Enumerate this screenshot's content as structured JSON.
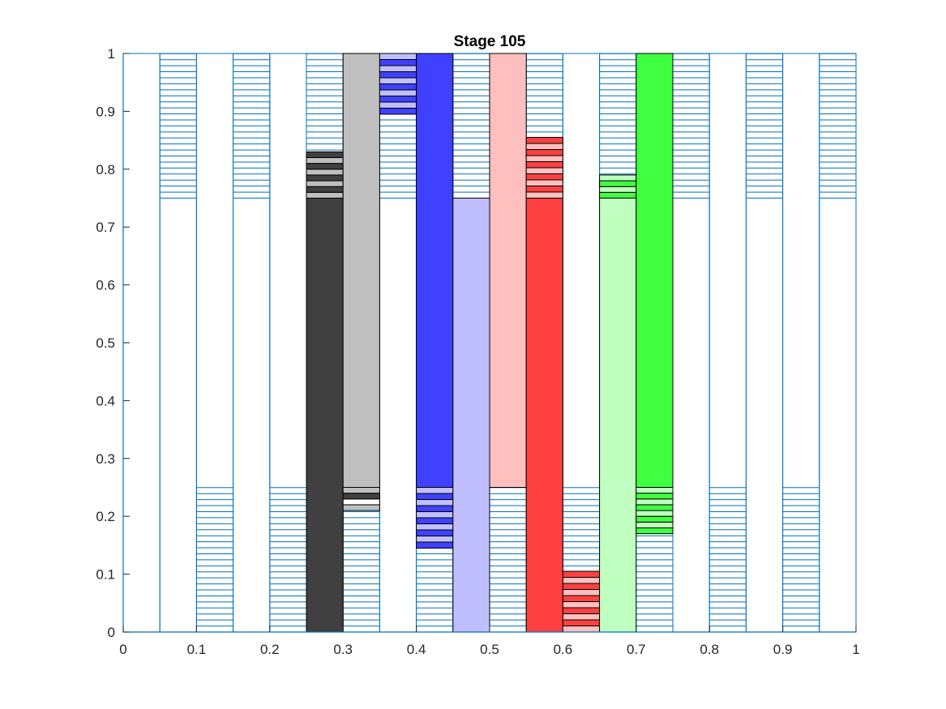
{
  "chart_data": {
    "type": "bar",
    "title": "Stage 105",
    "xlabel": "",
    "ylabel": "",
    "xlim": [
      0,
      1
    ],
    "ylim": [
      0,
      1
    ],
    "xticks": [
      "0",
      "0.1",
      "0.2",
      "0.3",
      "0.4",
      "0.5",
      "0.6",
      "0.7",
      "0.8",
      "0.9",
      "1"
    ],
    "yticks": [
      "0",
      "0.1",
      "0.2",
      "0.3",
      "0.4",
      "0.5",
      "0.6",
      "0.7",
      "0.8",
      "0.9",
      "1"
    ],
    "grid": false,
    "colors": {
      "outline": "#0072BD",
      "dark_gray": "#404040",
      "light_gray": "#bfbfbf",
      "blue": "#4040ff",
      "light_blue": "#bfbfff",
      "red": "#ff4040",
      "pink": "#ffbfbf",
      "green": "#40ff40",
      "light_green": "#bfffbf"
    },
    "columns": [
      {
        "x": [
          0.0,
          0.05
        ],
        "segments": [],
        "outline": {
          "hatch_bottom": 0,
          "hatch_top": 0
        }
      },
      {
        "x": [
          0.05,
          0.1
        ],
        "segments": [],
        "outline": {
          "hatch_bottom": 0,
          "hatch_top": 1
        }
      },
      {
        "x": [
          0.1,
          0.15
        ],
        "segments": [],
        "outline": {
          "hatch_bottom": 1,
          "hatch_top": 0
        }
      },
      {
        "x": [
          0.15,
          0.2
        ],
        "segments": [],
        "outline": {
          "hatch_bottom": 0,
          "hatch_top": 1
        }
      },
      {
        "x": [
          0.2,
          0.25
        ],
        "segments": [],
        "outline": {
          "hatch_bottom": 1,
          "hatch_top": 0
        }
      },
      {
        "x": [
          0.25,
          0.3
        ],
        "segments": [
          {
            "y0": 0.0,
            "y1": 0.75,
            "color": "dark_gray"
          },
          {
            "y0": 0.75,
            "y1": 0.83,
            "stripes": [
              "light_gray",
              "dark_gray"
            ]
          }
        ],
        "outline": {
          "hatch_bottom": 0,
          "hatch_top": 1
        }
      },
      {
        "x": [
          0.3,
          0.35
        ],
        "segments": [
          {
            "y0": 0.25,
            "y1": 1.0,
            "color": "light_gray"
          },
          {
            "y0": 0.21,
            "y1": 0.25,
            "stripes": [
              "light_gray",
              "white",
              "dark_gray"
            ]
          }
        ],
        "outline": {
          "hatch_bottom": 1,
          "hatch_top": 0
        }
      },
      {
        "x": [
          0.35,
          0.4
        ],
        "segments": [
          {
            "y0": 0.895,
            "y1": 1.0,
            "stripes": [
              "blue",
              "light_blue"
            ]
          }
        ],
        "outline": {
          "hatch_bottom": 0,
          "hatch_top": 1
        }
      },
      {
        "x": [
          0.4,
          0.45
        ],
        "segments": [
          {
            "y0": 0.25,
            "y1": 1.0,
            "color": "blue"
          },
          {
            "y0": 0.145,
            "y1": 0.25,
            "stripes": [
              "blue",
              "light_blue"
            ]
          }
        ],
        "outline": {
          "hatch_bottom": 1,
          "hatch_top": 0
        }
      },
      {
        "x": [
          0.45,
          0.5
        ],
        "segments": [
          {
            "y0": 0.0,
            "y1": 0.75,
            "color": "light_blue"
          }
        ],
        "outline": {
          "hatch_bottom": 0,
          "hatch_top": 1
        }
      },
      {
        "x": [
          0.5,
          0.55
        ],
        "segments": [
          {
            "y0": 0.25,
            "y1": 1.0,
            "color": "pink"
          }
        ],
        "outline": {
          "hatch_bottom": 1,
          "hatch_top": 0
        }
      },
      {
        "x": [
          0.55,
          0.6
        ],
        "segments": [
          {
            "y0": 0.0,
            "y1": 0.75,
            "color": "red"
          },
          {
            "y0": 0.75,
            "y1": 0.855,
            "stripes": [
              "pink",
              "red"
            ]
          }
        ],
        "outline": {
          "hatch_bottom": 0,
          "hatch_top": 1
        }
      },
      {
        "x": [
          0.6,
          0.65
        ],
        "segments": [
          {
            "y0": 0.0,
            "y1": 0.105,
            "stripes": [
              "pink",
              "red"
            ]
          }
        ],
        "outline": {
          "hatch_bottom": 1,
          "hatch_top": 0
        }
      },
      {
        "x": [
          0.65,
          0.7
        ],
        "segments": [
          {
            "y0": 0.0,
            "y1": 0.75,
            "color": "light_green"
          },
          {
            "y0": 0.75,
            "y1": 0.79,
            "stripes": [
              "green",
              "light_green"
            ]
          }
        ],
        "outline": {
          "hatch_bottom": 0,
          "hatch_top": 1
        }
      },
      {
        "x": [
          0.7,
          0.75
        ],
        "segments": [
          {
            "y0": 0.25,
            "y1": 1.0,
            "color": "green"
          },
          {
            "y0": 0.17,
            "y1": 0.25,
            "stripes": [
              "green",
              "light_green"
            ]
          }
        ],
        "outline": {
          "hatch_bottom": 1,
          "hatch_top": 0
        }
      },
      {
        "x": [
          0.75,
          0.8
        ],
        "segments": [],
        "outline": {
          "hatch_bottom": 0,
          "hatch_top": 1
        }
      },
      {
        "x": [
          0.8,
          0.85
        ],
        "segments": [],
        "outline": {
          "hatch_bottom": 1,
          "hatch_top": 0
        }
      },
      {
        "x": [
          0.85,
          0.9
        ],
        "segments": [],
        "outline": {
          "hatch_bottom": 0,
          "hatch_top": 1
        }
      },
      {
        "x": [
          0.9,
          0.95
        ],
        "segments": [],
        "outline": {
          "hatch_bottom": 1,
          "hatch_top": 0
        }
      },
      {
        "x": [
          0.95,
          1.0
        ],
        "segments": [],
        "outline": {
          "hatch_bottom": 0,
          "hatch_top": 1
        }
      }
    ],
    "hatch_zones": {
      "bottom": [
        0.0,
        0.25
      ],
      "top": [
        0.75,
        1.0
      ],
      "step": 0.0104
    }
  }
}
